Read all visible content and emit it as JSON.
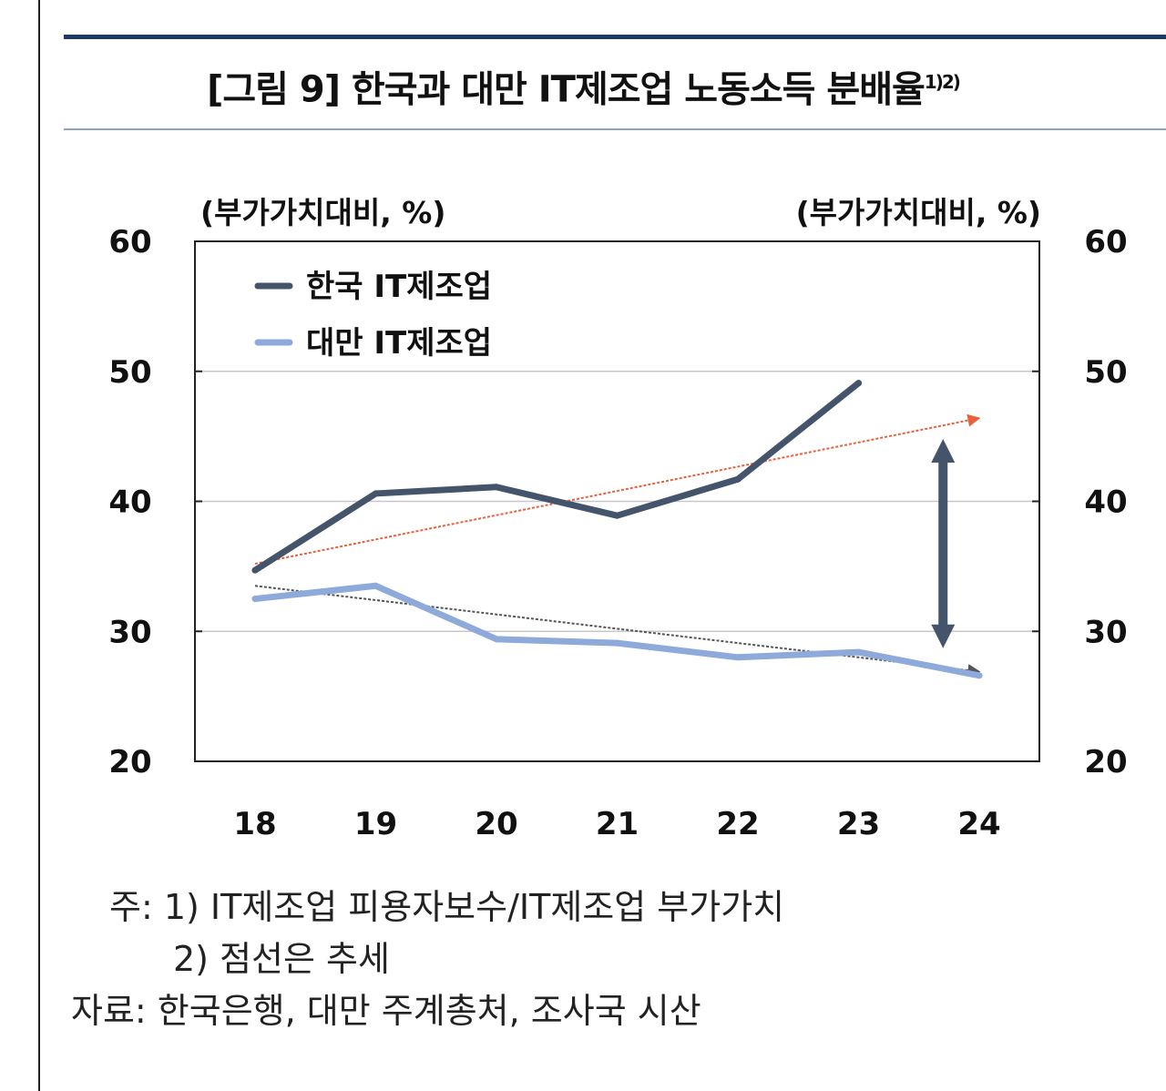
{
  "title": {
    "main": "[그림 9] 한국과 대만 IT제조업 노동소득 분배율",
    "superscript": "1)2)"
  },
  "notes": {
    "line1": "주: 1) IT제조업 피용자보수/IT제조업 부가가치",
    "line2": "2) 점선은 추세",
    "line3": "자료: 한국은행, 대만 주계총처, 조사국 시산"
  },
  "chart_data": {
    "type": "line",
    "title": "[그림 9] 한국과 대만 IT제조업 노동소득 분배율",
    "ylabel_left": "(부가가치대비, %)",
    "ylabel_right": "(부가가치대비, %)",
    "xlabel": "",
    "ylim": [
      20,
      60
    ],
    "yticks": [
      20,
      30,
      40,
      50,
      60
    ],
    "grid": true,
    "legend_position": "top-left",
    "categories": [
      "18",
      "19",
      "20",
      "21",
      "22",
      "23",
      "24"
    ],
    "series": [
      {
        "name": "한국 IT제조업",
        "color": "#44546a",
        "values": [
          34.7,
          40.6,
          41.1,
          38.9,
          41.7,
          49.1,
          null
        ]
      },
      {
        "name": "대만 IT제조업",
        "color": "#8eaadb",
        "values": [
          32.5,
          33.5,
          29.4,
          29.1,
          28.0,
          28.4,
          26.6
        ]
      }
    ],
    "trendlines": [
      {
        "series": "한국 IT제조업",
        "style": "dotted",
        "color": "#e8603c",
        "from": {
          "x": "18",
          "y": 35.2
        },
        "to": {
          "x": "24",
          "y": 46.4
        }
      },
      {
        "series": "대만 IT제조업",
        "style": "dotted",
        "color": "#555555",
        "from": {
          "x": "18",
          "y": 33.5
        },
        "to": {
          "x": "24",
          "y": 26.9
        }
      }
    ],
    "annotations": [
      {
        "type": "double-arrow",
        "x": "23.7",
        "from_y": 28.7,
        "to_y": 44.8,
        "color": "#44546a"
      }
    ]
  }
}
